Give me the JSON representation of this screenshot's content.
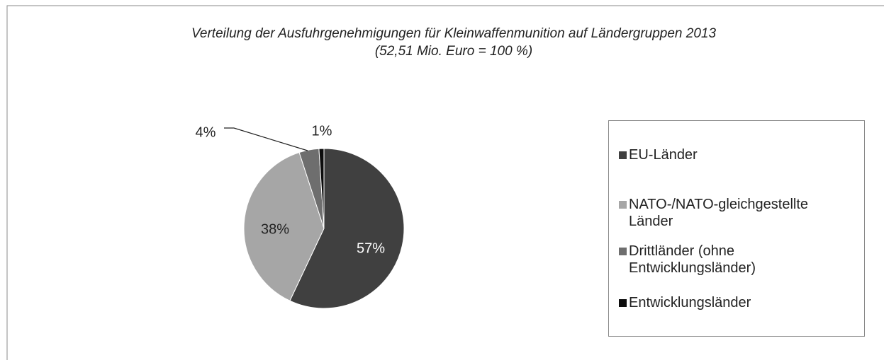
{
  "chart_data": {
    "type": "pie",
    "title": "Verteilung der Ausfuhrgenehmigungen für Kleinwaffenmunition auf Ländergruppen 2013",
    "subtitle": "(52,51 Mio. Euro = 100 %)",
    "categories": [
      "EU-Länder",
      "NATO-/NATO-gleichgestellte Länder",
      "Drittländer (ohne Entwicklungsländer)",
      "Entwicklungsländer"
    ],
    "values": [
      57,
      38,
      4,
      1
    ],
    "value_labels": [
      "57%",
      "38%",
      "4%",
      "1%"
    ],
    "colors": [
      "#404040",
      "#a6a6a6",
      "#6e6e6e",
      "#0d0d0d"
    ],
    "legend": "right"
  }
}
